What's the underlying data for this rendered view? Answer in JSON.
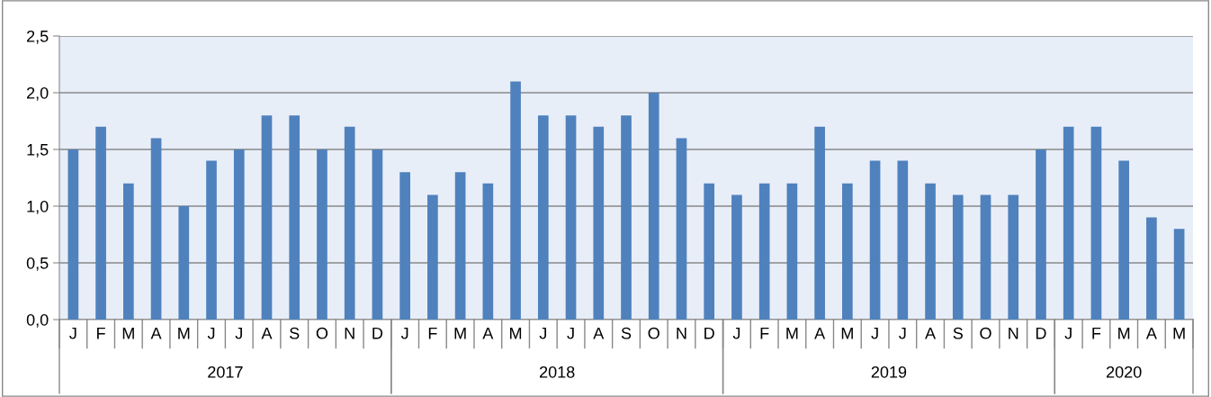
{
  "chart_data": {
    "type": "bar",
    "categories": [
      "J",
      "F",
      "M",
      "A",
      "M",
      "J",
      "J",
      "A",
      "S",
      "O",
      "N",
      "D",
      "J",
      "F",
      "M",
      "A",
      "M",
      "J",
      "J",
      "A",
      "S",
      "O",
      "N",
      "D",
      "J",
      "F",
      "M",
      "A",
      "M",
      "J",
      "J",
      "A",
      "S",
      "O",
      "N",
      "D",
      "J",
      "F",
      "M",
      "A",
      "M"
    ],
    "values": [
      1.5,
      1.7,
      1.2,
      1.6,
      1.0,
      1.4,
      1.5,
      1.8,
      1.8,
      1.5,
      1.7,
      1.5,
      1.3,
      1.1,
      1.3,
      1.2,
      2.1,
      1.8,
      1.8,
      1.7,
      1.8,
      2.0,
      1.6,
      1.2,
      1.1,
      1.2,
      1.2,
      1.7,
      1.2,
      1.4,
      1.4,
      1.2,
      1.1,
      1.1,
      1.1,
      1.5,
      1.7,
      1.7,
      1.4,
      0.9,
      0.8
    ],
    "color": "#4f81bd",
    "ylim": [
      0,
      2.5
    ],
    "yticks": [
      {
        "value": 0,
        "label": "0,0"
      },
      {
        "value": 0.5,
        "label": "0,5"
      },
      {
        "value": 1.0,
        "label": "1,0"
      },
      {
        "value": 1.5,
        "label": "1,5"
      },
      {
        "value": 2.0,
        "label": "2,0"
      },
      {
        "value": 2.5,
        "label": "2,5"
      }
    ],
    "grid": "y",
    "annotations": [
      "2017",
      "2018",
      "2019",
      "2020"
    ]
  }
}
